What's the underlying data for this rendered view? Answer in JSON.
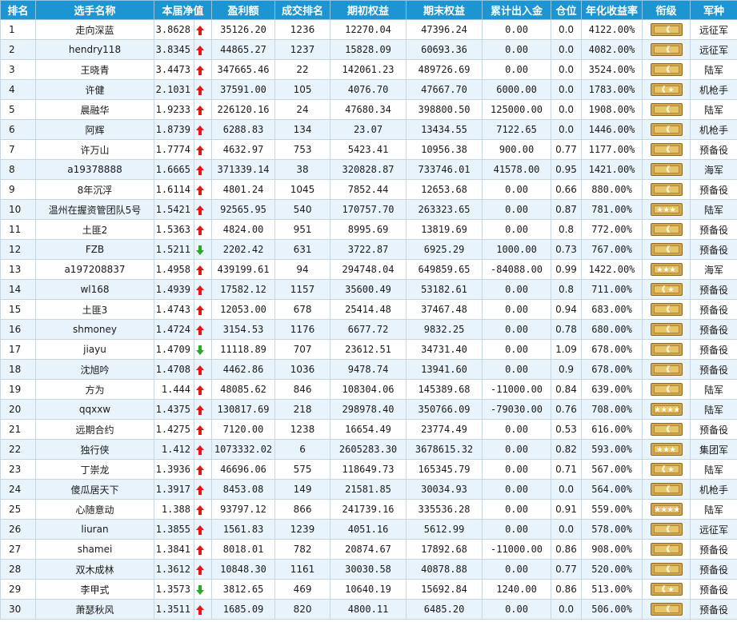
{
  "headers": [
    "排名",
    "选手名称",
    "本届净值",
    "盈利额",
    "成交排名",
    "期初权益",
    "期末权益",
    "累计出入金",
    "仓位",
    "年化收益率",
    "衔级",
    "军种"
  ],
  "rows": [
    {
      "rank": "1",
      "name": "走向深蓝",
      "nav": "3.8628",
      "trend": "up",
      "profit": "35126.20",
      "trade_rank": "1236",
      "start_equity": "12270.04",
      "end_equity": "47396.24",
      "net_inflow": "0.00",
      "position": "0.0",
      "annual": "4122.00%",
      "badge": "chevron",
      "army": "远征军"
    },
    {
      "rank": "2",
      "name": "hendry118",
      "nav": "3.8345",
      "trend": "up",
      "profit": "44865.27",
      "trade_rank": "1237",
      "start_equity": "15828.09",
      "end_equity": "60693.36",
      "net_inflow": "0.00",
      "position": "0.0",
      "annual": "4082.00%",
      "badge": "chevron",
      "army": "远征军"
    },
    {
      "rank": "3",
      "name": "王晓青",
      "nav": "3.4473",
      "trend": "up",
      "profit": "347665.46",
      "trade_rank": "22",
      "start_equity": "142061.23",
      "end_equity": "489726.69",
      "net_inflow": "0.00",
      "position": "0.0",
      "annual": "3524.00%",
      "badge": "chevron",
      "army": "陆军"
    },
    {
      "rank": "4",
      "name": "许健",
      "nav": "2.1031",
      "trend": "up",
      "profit": "37591.00",
      "trade_rank": "105",
      "start_equity": "4076.70",
      "end_equity": "47667.70",
      "net_inflow": "6000.00",
      "position": "0.0",
      "annual": "1783.00%",
      "badge": "chevron-star",
      "army": "机枪手"
    },
    {
      "rank": "5",
      "name": "晨融华",
      "nav": "1.9233",
      "trend": "up",
      "profit": "226120.16",
      "trade_rank": "24",
      "start_equity": "47680.34",
      "end_equity": "398800.50",
      "net_inflow": "125000.00",
      "position": "0.0",
      "annual": "1908.00%",
      "badge": "chevron",
      "army": "陆军"
    },
    {
      "rank": "6",
      "name": "阿辉",
      "nav": "1.8739",
      "trend": "up",
      "profit": "6288.83",
      "trade_rank": "134",
      "start_equity": "23.07",
      "end_equity": "13434.55",
      "net_inflow": "7122.65",
      "position": "0.0",
      "annual": "1446.00%",
      "badge": "chevron",
      "army": "机枪手"
    },
    {
      "rank": "7",
      "name": "许万山",
      "nav": "1.7774",
      "trend": "up",
      "profit": "4632.97",
      "trade_rank": "753",
      "start_equity": "5423.41",
      "end_equity": "10956.38",
      "net_inflow": "900.00",
      "position": "0.77",
      "annual": "1177.00%",
      "badge": "chevron",
      "army": "预备役"
    },
    {
      "rank": "8",
      "name": "a19378888",
      "nav": "1.6665",
      "trend": "up",
      "profit": "371339.14",
      "trade_rank": "38",
      "start_equity": "320828.87",
      "end_equity": "733746.01",
      "net_inflow": "41578.00",
      "position": "0.95",
      "annual": "1421.00%",
      "badge": "chevron",
      "army": "海军"
    },
    {
      "rank": "9",
      "name": "8年沉浮",
      "nav": "1.6114",
      "trend": "up",
      "profit": "4801.24",
      "trade_rank": "1045",
      "start_equity": "7852.44",
      "end_equity": "12653.68",
      "net_inflow": "0.00",
      "position": "0.66",
      "annual": "880.00%",
      "badge": "chevron",
      "army": "预备役"
    },
    {
      "rank": "10",
      "name": "温州在握资管团队5号",
      "nav": "1.5421",
      "trend": "up",
      "profit": "92565.95",
      "trade_rank": "540",
      "start_equity": "170757.70",
      "end_equity": "263323.65",
      "net_inflow": "0.00",
      "position": "0.87",
      "annual": "781.00%",
      "badge": "stars3",
      "army": "陆军"
    },
    {
      "rank": "11",
      "name": "土匪2",
      "nav": "1.5363",
      "trend": "up",
      "profit": "4824.00",
      "trade_rank": "951",
      "start_equity": "8995.69",
      "end_equity": "13819.69",
      "net_inflow": "0.00",
      "position": "0.8",
      "annual": "772.00%",
      "badge": "chevron",
      "army": "预备役"
    },
    {
      "rank": "12",
      "name": "FZB",
      "nav": "1.5211",
      "trend": "down",
      "profit": "2202.42",
      "trade_rank": "631",
      "start_equity": "3722.87",
      "end_equity": "6925.29",
      "net_inflow": "1000.00",
      "position": "0.73",
      "annual": "767.00%",
      "badge": "chevron",
      "army": "预备役"
    },
    {
      "rank": "13",
      "name": "a197208837",
      "nav": "1.4958",
      "trend": "up",
      "profit": "439199.61",
      "trade_rank": "94",
      "start_equity": "294748.04",
      "end_equity": "649859.65",
      "net_inflow": "-84088.00",
      "position": "0.99",
      "annual": "1422.00%",
      "badge": "stars3",
      "army": "海军"
    },
    {
      "rank": "14",
      "name": "wl168",
      "nav": "1.4939",
      "trend": "up",
      "profit": "17582.12",
      "trade_rank": "1157",
      "start_equity": "35600.49",
      "end_equity": "53182.61",
      "net_inflow": "0.00",
      "position": "0.8",
      "annual": "711.00%",
      "badge": "chevron-star",
      "army": "预备役"
    },
    {
      "rank": "15",
      "name": "土匪3",
      "nav": "1.4743",
      "trend": "up",
      "profit": "12053.00",
      "trade_rank": "678",
      "start_equity": "25414.48",
      "end_equity": "37467.48",
      "net_inflow": "0.00",
      "position": "0.94",
      "annual": "683.00%",
      "badge": "chevron",
      "army": "预备役"
    },
    {
      "rank": "16",
      "name": "shmoney",
      "nav": "1.4724",
      "trend": "up",
      "profit": "3154.53",
      "trade_rank": "1176",
      "start_equity": "6677.72",
      "end_equity": "9832.25",
      "net_inflow": "0.00",
      "position": "0.78",
      "annual": "680.00%",
      "badge": "chevron",
      "army": "预备役"
    },
    {
      "rank": "17",
      "name": "jiayu",
      "nav": "1.4709",
      "trend": "down",
      "profit": "11118.89",
      "trade_rank": "707",
      "start_equity": "23612.51",
      "end_equity": "34731.40",
      "net_inflow": "0.00",
      "position": "1.09",
      "annual": "678.00%",
      "badge": "chevron",
      "army": "预备役"
    },
    {
      "rank": "18",
      "name": "沈旭吟",
      "nav": "1.4708",
      "trend": "up",
      "profit": "4462.86",
      "trade_rank": "1036",
      "start_equity": "9478.74",
      "end_equity": "13941.60",
      "net_inflow": "0.00",
      "position": "0.9",
      "annual": "678.00%",
      "badge": "chevron",
      "army": "预备役"
    },
    {
      "rank": "19",
      "name": "方为",
      "nav": "1.444",
      "trend": "up",
      "profit": "48085.62",
      "trade_rank": "846",
      "start_equity": "108304.06",
      "end_equity": "145389.68",
      "net_inflow": "-11000.00",
      "position": "0.84",
      "annual": "639.00%",
      "badge": "chevron",
      "army": "陆军"
    },
    {
      "rank": "20",
      "name": "qqxxw",
      "nav": "1.4375",
      "trend": "up",
      "profit": "130817.69",
      "trade_rank": "218",
      "start_equity": "298978.40",
      "end_equity": "350766.09",
      "net_inflow": "-79030.00",
      "position": "0.76",
      "annual": "708.00%",
      "badge": "stars4",
      "army": "陆军"
    },
    {
      "rank": "21",
      "name": "远期合约",
      "nav": "1.4275",
      "trend": "up",
      "profit": "7120.00",
      "trade_rank": "1238",
      "start_equity": "16654.49",
      "end_equity": "23774.49",
      "net_inflow": "0.00",
      "position": "0.53",
      "annual": "616.00%",
      "badge": "chevron",
      "army": "预备役"
    },
    {
      "rank": "22",
      "name": "独行侠",
      "nav": "1.412",
      "trend": "up",
      "profit": "1073332.02",
      "trade_rank": "6",
      "start_equity": "2605283.30",
      "end_equity": "3678615.32",
      "net_inflow": "0.00",
      "position": "0.82",
      "annual": "593.00%",
      "badge": "stars3",
      "army": "集团军"
    },
    {
      "rank": "23",
      "name": "丁崇龙",
      "nav": "1.3936",
      "trend": "up",
      "profit": "46696.06",
      "trade_rank": "575",
      "start_equity": "118649.73",
      "end_equity": "165345.79",
      "net_inflow": "0.00",
      "position": "0.71",
      "annual": "567.00%",
      "badge": "chevron-star",
      "army": "陆军"
    },
    {
      "rank": "24",
      "name": "傻瓜居天下",
      "nav": "1.3917",
      "trend": "up",
      "profit": "8453.08",
      "trade_rank": "149",
      "start_equity": "21581.85",
      "end_equity": "30034.93",
      "net_inflow": "0.00",
      "position": "0.0",
      "annual": "564.00%",
      "badge": "chevron",
      "army": "机枪手"
    },
    {
      "rank": "25",
      "name": "心随意动",
      "nav": "1.388",
      "trend": "up",
      "profit": "93797.12",
      "trade_rank": "866",
      "start_equity": "241739.16",
      "end_equity": "335536.28",
      "net_inflow": "0.00",
      "position": "0.91",
      "annual": "559.00%",
      "badge": "stars4",
      "army": "陆军"
    },
    {
      "rank": "26",
      "name": "liuran",
      "nav": "1.3855",
      "trend": "up",
      "profit": "1561.83",
      "trade_rank": "1239",
      "start_equity": "4051.16",
      "end_equity": "5612.99",
      "net_inflow": "0.00",
      "position": "0.0",
      "annual": "578.00%",
      "badge": "chevron",
      "army": "远征军"
    },
    {
      "rank": "27",
      "name": "shamei",
      "nav": "1.3841",
      "trend": "up",
      "profit": "8018.01",
      "trade_rank": "782",
      "start_equity": "20874.67",
      "end_equity": "17892.68",
      "net_inflow": "-11000.00",
      "position": "0.86",
      "annual": "908.00%",
      "badge": "chevron",
      "army": "预备役"
    },
    {
      "rank": "28",
      "name": "双木成林",
      "nav": "1.3612",
      "trend": "up",
      "profit": "10848.30",
      "trade_rank": "1161",
      "start_equity": "30030.58",
      "end_equity": "40878.88",
      "net_inflow": "0.00",
      "position": "0.77",
      "annual": "520.00%",
      "badge": "chevron",
      "army": "预备役"
    },
    {
      "rank": "29",
      "name": "李甲式",
      "nav": "1.3573",
      "trend": "down",
      "profit": "3812.65",
      "trade_rank": "469",
      "start_equity": "10640.19",
      "end_equity": "15692.84",
      "net_inflow": "1240.00",
      "position": "0.86",
      "annual": "513.00%",
      "badge": "chevron-star",
      "army": "预备役"
    },
    {
      "rank": "30",
      "name": "萧瑟秋风",
      "nav": "1.3511",
      "trend": "up",
      "profit": "1685.09",
      "trade_rank": "820",
      "start_equity": "4800.11",
      "end_equity": "6485.20",
      "net_inflow": "0.00",
      "position": "0.0",
      "annual": "506.00%",
      "badge": "chevron",
      "army": "预备役"
    }
  ]
}
